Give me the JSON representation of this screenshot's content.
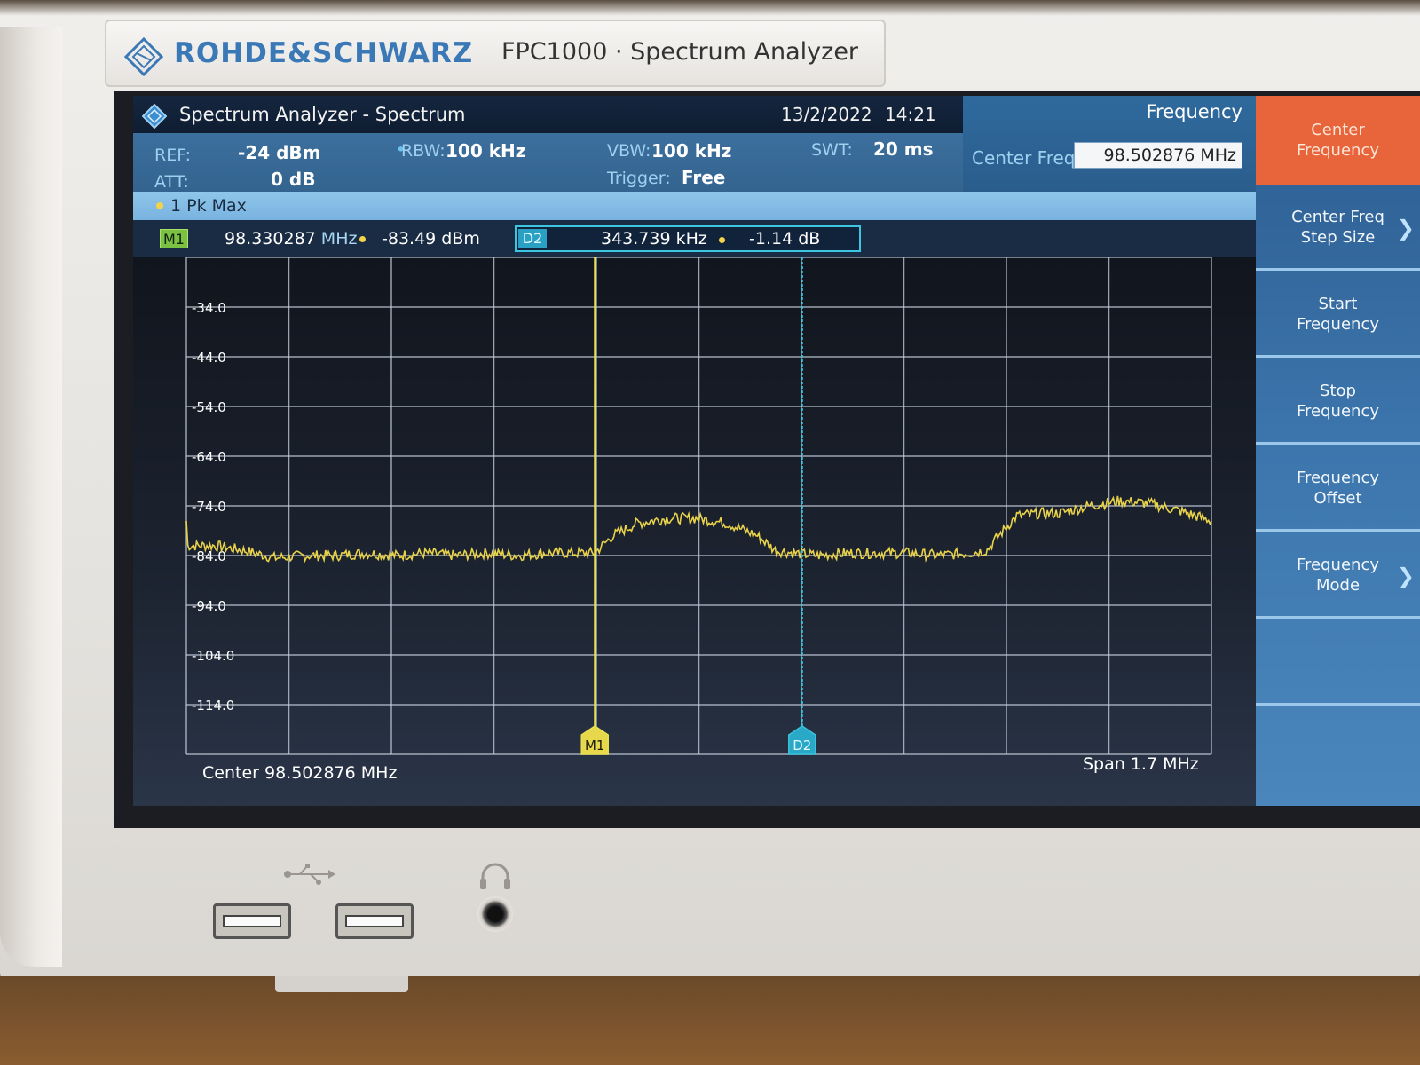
{
  "device": {
    "brand": "ROHDE&SCHWARZ",
    "model": "FPC1000 · Spectrum Analyzer"
  },
  "titlebar": {
    "title": "Spectrum Analyzer - Spectrum",
    "date": "13/2/2022",
    "time": "14:21"
  },
  "info": {
    "ref_label": "REF:",
    "ref_value": "-24 dBm",
    "att_label": "ATT:",
    "att_value": "0 dB",
    "rbw_label": "RBW:",
    "rbw_value": "100 kHz",
    "vbw_label": "VBW:",
    "vbw_value": "100 kHz",
    "swt_label": "SWT:",
    "swt_value": "20 ms",
    "trigger_label": "Trigger:",
    "trigger_value": "Free"
  },
  "frequency_panel": {
    "title": "Frequency",
    "center_label": "Center Freq",
    "center_value": "98.502876 MHz"
  },
  "trace": {
    "label": "1 Pk  Max"
  },
  "markers": {
    "m1_badge": "M1",
    "m1_freq": "98.330287",
    "m1_freq_unit": "MHz",
    "m1_level": "-83.49 dBm",
    "d2_badge": "D2",
    "d2_freq": "343.739 kHz",
    "d2_level": "-1.14 dB"
  },
  "footer": {
    "center": "Center 98.502876 MHz",
    "span": "Span 1.7 MHz"
  },
  "softkeys": [
    {
      "label": "Center\nFrequency",
      "active": true,
      "chevron": ""
    },
    {
      "label": "Center Freq\nStep Size",
      "active": false,
      "chevron": "❯"
    },
    {
      "label": "Start\nFrequency",
      "active": false,
      "chevron": ""
    },
    {
      "label": "Stop\nFrequency",
      "active": false,
      "chevron": ""
    },
    {
      "label": "Frequency\nOffset",
      "active": false,
      "chevron": ""
    },
    {
      "label": "Frequency\nMode",
      "active": false,
      "chevron": "❯"
    },
    {
      "label": "",
      "active": false,
      "chevron": ""
    }
  ],
  "colors": {
    "trace": "#e8d24a",
    "m1_line": "#e8e050",
    "d2_line": "#39c3dc",
    "active_softkey": "#e8643a",
    "grid": "#c8d2e0"
  },
  "chart_data": {
    "type": "line",
    "xlabel": "",
    "ylabel": "",
    "x_unit": "MHz",
    "y_unit": "dBm",
    "xlim": [
      97.652876,
      99.352876
    ],
    "ylim": [
      -124,
      -24
    ],
    "y_ticks": [
      -34.0,
      -44.0,
      -54.0,
      -64.0,
      -74.0,
      -84.0,
      -94.0,
      -104.0,
      -114.0
    ],
    "y_tick_labels": [
      "-34.0",
      "-44.0",
      "-54.0",
      "-64.0",
      "-74.0",
      "-84.0",
      "-94.0",
      "-104.0",
      "-114.0"
    ],
    "grid": true,
    "series": [
      {
        "values_x": [
          97.653,
          97.7,
          97.75,
          97.8,
          97.85,
          97.9,
          97.95,
          98.0,
          98.05,
          98.1,
          98.15,
          98.2,
          98.25,
          98.3,
          98.33,
          98.36,
          98.4,
          98.45,
          98.5,
          98.55,
          98.6,
          98.63,
          98.66,
          98.7,
          98.75,
          98.8,
          98.85,
          98.9,
          98.95,
          98.98,
          99.0,
          99.03,
          99.07,
          99.1,
          99.15,
          99.2,
          99.25,
          99.3,
          99.353
        ],
        "values_y": [
          -82,
          -82,
          -83,
          -84.5,
          -84,
          -84,
          -83.5,
          -84,
          -83.5,
          -84,
          -83.5,
          -84,
          -83.5,
          -83.5,
          -83.5,
          -80,
          -77.5,
          -76.5,
          -76.5,
          -77.5,
          -80,
          -83,
          -83.5,
          -84,
          -83.5,
          -83.5,
          -83.5,
          -84,
          -83.5,
          -83,
          -80,
          -76,
          -75.5,
          -75.5,
          -74,
          -73,
          -73.5,
          -75,
          -77
        ]
      }
    ],
    "markers": [
      {
        "name": "M1",
        "x": 98.330287,
        "y": -83.49
      },
      {
        "name": "D2",
        "x": 98.674026,
        "y": -84.63
      }
    ]
  }
}
